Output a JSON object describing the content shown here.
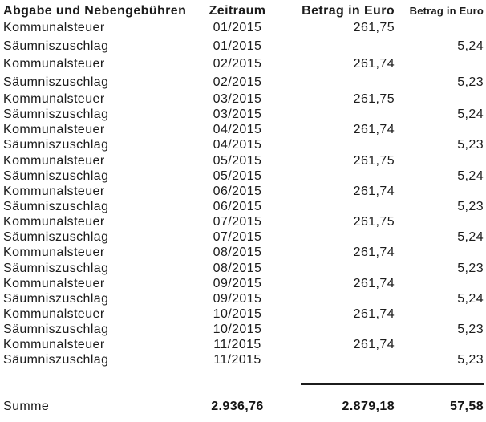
{
  "document": {
    "headers": {
      "fee_type": "Abgabe und Nebengebühren",
      "period": "Zeitraum",
      "amount_col1": "Betrag in Euro",
      "amount_col2": "Betrag in Euro"
    },
    "rows": [
      {
        "fee": "Kommunalsteuer",
        "period": "01/2015",
        "amount1": "261,75",
        "amount2": ""
      },
      {
        "fee": "Säumniszuschlag",
        "period": "01/2015",
        "amount1": "",
        "amount2": "5,24"
      },
      {
        "fee": "Kommunalsteuer",
        "period": "02/2015",
        "amount1": "261,74",
        "amount2": ""
      },
      {
        "fee": "Säumniszuschlag",
        "period": "02/2015",
        "amount1": "",
        "amount2": "5,23"
      },
      {
        "fee": "Kommunalsteuer",
        "period": "03/2015",
        "amount1": "261,75",
        "amount2": ""
      },
      {
        "fee": "Säumniszuschlag",
        "period": "03/2015",
        "amount1": "",
        "amount2": "5,24"
      },
      {
        "fee": "Kommunalsteuer",
        "period": "04/2015",
        "amount1": "261,74",
        "amount2": ""
      },
      {
        "fee": "Säumniszuschlag",
        "period": "04/2015",
        "amount1": "",
        "amount2": "5,23"
      },
      {
        "fee": "Kommunalsteuer",
        "period": "05/2015",
        "amount1": "261,75",
        "amount2": ""
      },
      {
        "fee": "Säumniszuschlag",
        "period": "05/2015",
        "amount1": "",
        "amount2": "5,24"
      },
      {
        "fee": "Kommunalsteuer",
        "period": "06/2015",
        "amount1": "261,74",
        "amount2": ""
      },
      {
        "fee": "Säumniszuschlag",
        "period": "06/2015",
        "amount1": "",
        "amount2": "5,23"
      },
      {
        "fee": "Kommunalsteuer",
        "period": "07/2015",
        "amount1": "261,75",
        "amount2": ""
      },
      {
        "fee": "Säumniszuschlag",
        "period": "07/2015",
        "amount1": "",
        "amount2": "5,24"
      },
      {
        "fee": "Kommunalsteuer",
        "period": "08/2015",
        "amount1": "261,74",
        "amount2": ""
      },
      {
        "fee": "Säumniszuschlag",
        "period": "08/2015",
        "amount1": "",
        "amount2": "5,23"
      },
      {
        "fee": "Kommunalsteuer",
        "period": "09/2015",
        "amount1": "261,74",
        "amount2": ""
      },
      {
        "fee": "Säumniszuschlag",
        "period": "09/2015",
        "amount1": "",
        "amount2": "5,24"
      },
      {
        "fee": "Kommunalsteuer",
        "period": "10/2015",
        "amount1": "261,74",
        "amount2": ""
      },
      {
        "fee": "Säumniszuschlag",
        "period": "10/2015",
        "amount1": "",
        "amount2": "5,23"
      },
      {
        "fee": "Kommunalsteuer",
        "period": "11/2015",
        "amount1": "261,74",
        "amount2": ""
      },
      {
        "fee": "Säumniszuschlag",
        "period": "11/2015",
        "amount1": "",
        "amount2": "5,23"
      }
    ],
    "summary": {
      "label": "Summe",
      "grand_total": "2.936,76",
      "col1_total": "2.879,18",
      "col2_total": "57,58"
    }
  },
  "colors": {
    "text": "#1c1c1c",
    "background": "#ffffff",
    "divider": "#1c1c1c"
  }
}
